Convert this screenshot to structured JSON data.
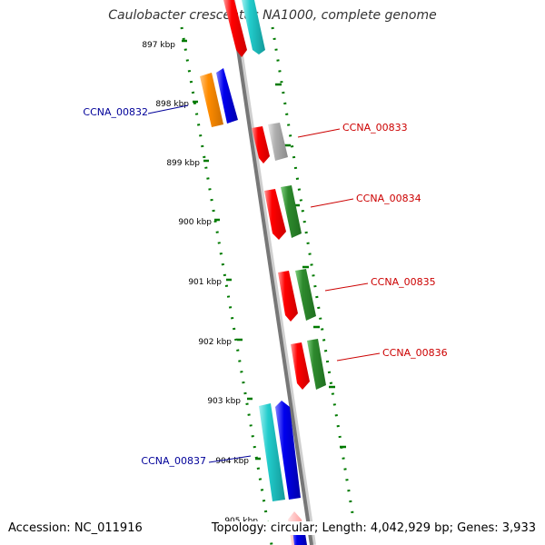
{
  "title": "Caulobacter crescentus NA1000, complete genome",
  "footer": {
    "accession": "Accession: NC_011916",
    "stats": "Topology: circular; Length: 4,042,929 bp; Genes: 3,933"
  },
  "colors": {
    "red": "#ff0000",
    "green": "#2e8b2e",
    "blue": "#0000ee",
    "cyan": "#22cccc",
    "orange": "#ff8c00",
    "gray": "#b0b0b0",
    "label_forward": "#cc0000",
    "label_reverse": "#000099",
    "tick": "#007a00"
  },
  "ticks": [
    "897 kbp",
    "898 kbp",
    "899 kbp",
    "900 kbp",
    "901 kbp",
    "902 kbp",
    "903 kbp",
    "904 kbp",
    "905 kbp"
  ],
  "gene_labels": {
    "ccna_00832": "CCNA_00832",
    "ccna_00833": "CCNA_00833",
    "ccna_00834": "CCNA_00834",
    "ccna_00835": "CCNA_00835",
    "ccna_00836": "CCNA_00836",
    "ccna_00837": "CCNA_00837"
  }
}
